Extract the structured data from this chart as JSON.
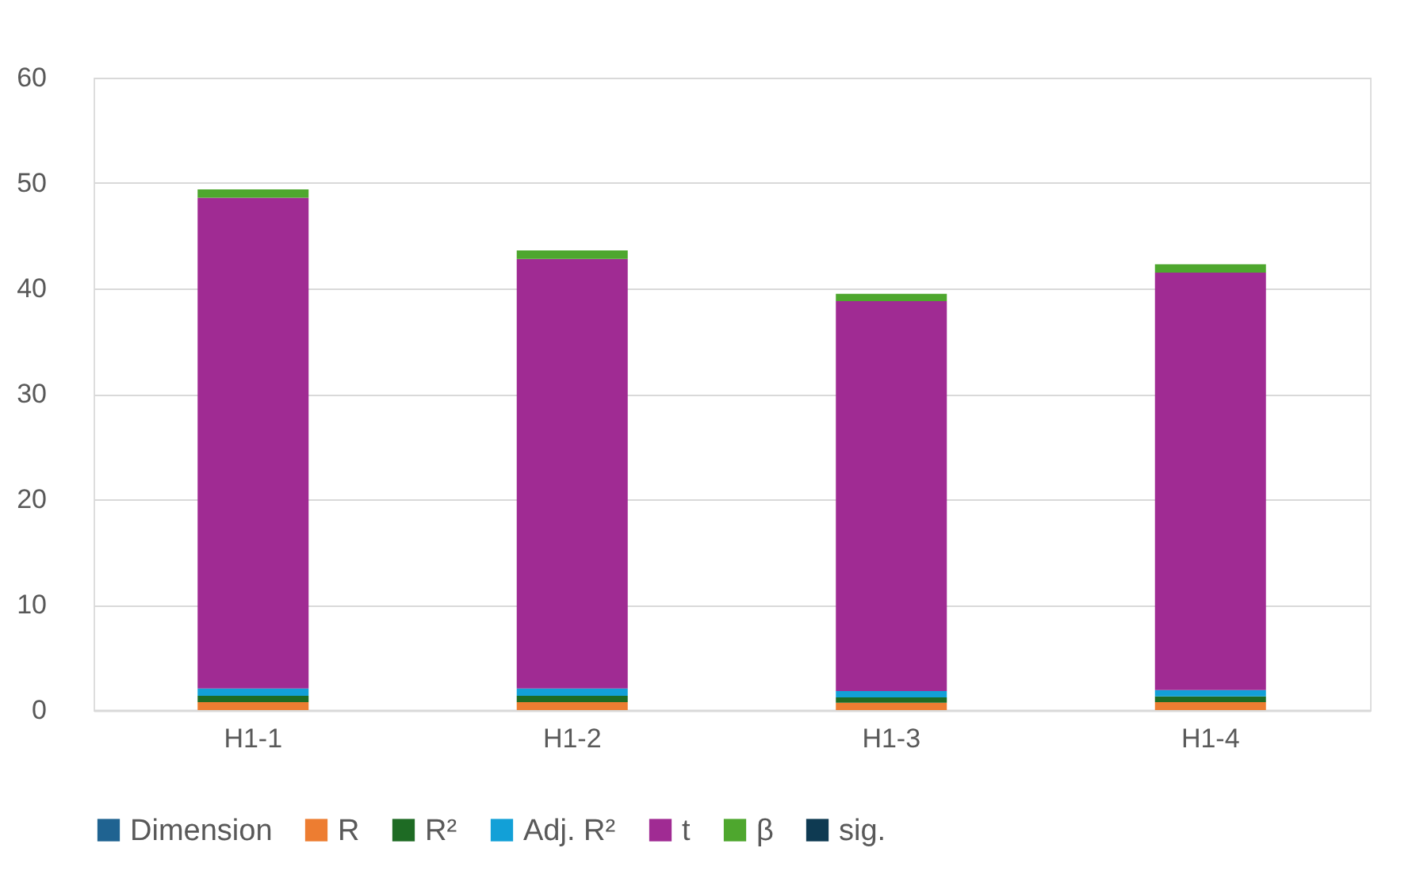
{
  "chart_data": {
    "type": "bar",
    "stacked": true,
    "categories": [
      "H1-1",
      "H1-2",
      "H1-3",
      "H1-4"
    ],
    "series": [
      {
        "name": "Dimension",
        "color": "#1f6391",
        "values": [
          0,
          0,
          0,
          0
        ]
      },
      {
        "name": "R",
        "color": "#ed7d31",
        "values": [
          0.75,
          0.75,
          0.7,
          0.75
        ]
      },
      {
        "name": "R²",
        "color": "#1e6b24",
        "values": [
          0.6,
          0.6,
          0.5,
          0.55
        ]
      },
      {
        "name": "Adj. R²",
        "color": "#12a0d7",
        "values": [
          0.7,
          0.7,
          0.6,
          0.6
        ]
      },
      {
        "name": "t",
        "color": "#a02b93",
        "values": [
          46.55,
          40.75,
          37.0,
          39.6
        ]
      },
      {
        "name": "β",
        "color": "#4ea72e",
        "values": [
          0.8,
          0.8,
          0.7,
          0.8
        ]
      },
      {
        "name": "sig.",
        "color": "#0e3a52",
        "values": [
          0,
          0,
          0,
          0
        ]
      }
    ],
    "ylim": [
      0,
      60
    ],
    "yticks": [
      0,
      10,
      20,
      30,
      40,
      50,
      60
    ],
    "grid": "y",
    "legend": "bottom"
  }
}
